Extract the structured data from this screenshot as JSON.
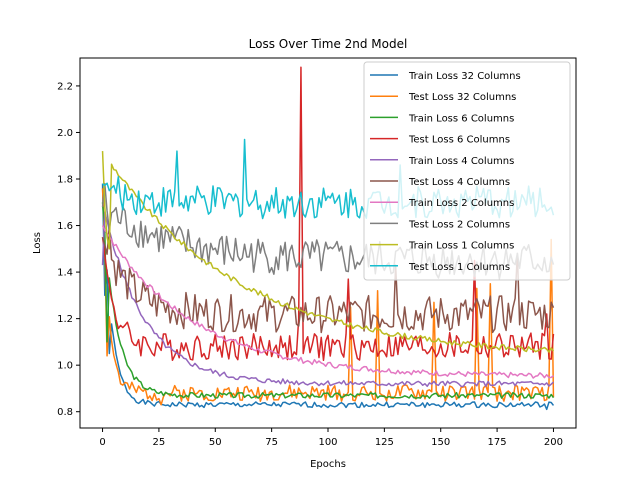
{
  "chart_data": {
    "type": "line",
    "title": "Loss Over Time 2nd Model",
    "xlabel": "Epochs",
    "ylabel": "Loss",
    "xlim": [
      -10,
      210
    ],
    "ylim": [
      0.73,
      2.32
    ],
    "xticks": [
      0,
      25,
      50,
      75,
      100,
      125,
      150,
      175,
      200
    ],
    "yticks": [
      0.8,
      1.0,
      1.2,
      1.4,
      1.6,
      1.8,
      2.0,
      2.2
    ],
    "grid": false,
    "legend_position": "top-right",
    "series": [
      {
        "name": "Train Loss 32 Columns",
        "color": "#1f77b4",
        "start": 1.78,
        "end": 0.83,
        "tau": 4,
        "noise": 0.012,
        "seed": 1,
        "spikes": [
          [
            1,
            1.3
          ],
          [
            3,
            1.05
          ],
          [
            197,
            0.81
          ]
        ]
      },
      {
        "name": "Test Loss 32 Columns",
        "color": "#ff7f0e",
        "start": 1.76,
        "end": 0.88,
        "tau": 3,
        "noise": 0.035,
        "seed": 2,
        "spikes": [
          [
            2,
            1.04
          ],
          [
            8,
            0.92
          ],
          [
            26,
            0.83
          ],
          [
            110,
            1.25
          ],
          [
            122,
            1.32
          ],
          [
            147,
            1.27
          ],
          [
            166,
            1.33
          ],
          [
            172,
            1.35
          ],
          [
            199,
            1.54
          ]
        ]
      },
      {
        "name": "Train Loss 6 Columns",
        "color": "#2ca02c",
        "start": 1.7,
        "end": 0.87,
        "tau": 6,
        "noise": 0.012,
        "seed": 3,
        "spikes": [
          [
            2,
            1.1
          ]
        ]
      },
      {
        "name": "Test Loss 6 Columns",
        "color": "#d62728",
        "start": 1.55,
        "end": 1.08,
        "tau": 5,
        "noise": 0.06,
        "seed": 4,
        "spikes": [
          [
            88,
            2.28
          ],
          [
            87,
            1.2
          ],
          [
            89,
            1.05
          ],
          [
            109,
            1.37
          ],
          [
            165,
            1.45
          ],
          [
            197,
            1.22
          ]
        ]
      },
      {
        "name": "Train Loss 4 Columns",
        "color": "#9467bd",
        "start": 1.7,
        "end": 0.92,
        "tau": 18,
        "noise": 0.012,
        "seed": 5,
        "spikes": [
          [
            0,
            1.43
          ]
        ]
      },
      {
        "name": "Test Loss 4 Columns",
        "color": "#8c564b",
        "start": 1.55,
        "end": 1.22,
        "tau": 12,
        "noise": 0.08,
        "seed": 6,
        "spikes": [
          [
            3,
            1.6
          ],
          [
            130,
            1.43
          ],
          [
            184,
            1.48
          ]
        ]
      },
      {
        "name": "Train Loss 2 Columns",
        "color": "#e377c2",
        "start": 1.6,
        "end": 0.95,
        "tau": 40,
        "noise": 0.012,
        "seed": 7,
        "spikes": []
      },
      {
        "name": "Test Loss 2 Columns",
        "color": "#7f7f7f",
        "start": 1.68,
        "end": 1.45,
        "tau": 30,
        "noise": 0.08,
        "seed": 8,
        "spikes": [
          [
            1,
            1.78
          ],
          [
            3,
            1.58
          ]
        ]
      },
      {
        "name": "Train Loss 1 Columns",
        "color": "#bcbd22",
        "start": 1.92,
        "end": 1.03,
        "tau": 60,
        "noise": 0.012,
        "seed": 9,
        "spikes": [
          [
            0,
            1.92
          ],
          [
            1,
            1.68
          ],
          [
            2,
            1.55
          ],
          [
            3,
            1.5
          ],
          [
            200,
            1.06
          ]
        ]
      },
      {
        "name": "Test Loss 1 Columns",
        "color": "#17becf",
        "start": 1.78,
        "end": 1.7,
        "tau": 10,
        "noise": 0.07,
        "seed": 10,
        "spikes": [
          [
            33,
            1.92
          ],
          [
            63,
            1.97
          ],
          [
            132,
            1.86
          ]
        ]
      }
    ]
  }
}
